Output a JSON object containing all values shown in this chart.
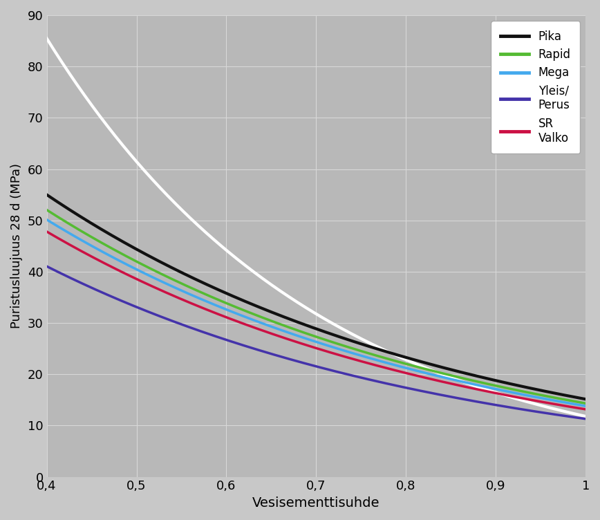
{
  "xlabel": "Vesisementtisuhde",
  "ylabel": "Puristusluujuus 28 d (MPa)",
  "xlim": [
    0.4,
    1.0
  ],
  "ylim": [
    0,
    90
  ],
  "yticks": [
    0,
    10,
    20,
    30,
    40,
    50,
    60,
    70,
    80,
    90
  ],
  "xticks": [
    0.4,
    0.5,
    0.6,
    0.7,
    0.8,
    0.9,
    1.0
  ],
  "xtick_labels": [
    "0,4",
    "0,5",
    "0,6",
    "0,7",
    "0,8",
    "0,9",
    "1"
  ],
  "background_color": "#c8c8c8",
  "plot_background_color": "#b8b8b8",
  "grid_color": "#d8d8d8",
  "series": [
    {
      "label": "white_curve",
      "color": "#ffffff",
      "linewidth": 3.0,
      "A": 320.0,
      "k": 3.3
    },
    {
      "label": "Pika",
      "color": "#111111",
      "linewidth": 3.0,
      "A": 130.0,
      "k": 2.15
    },
    {
      "label": "Rapid",
      "color": "#55bb33",
      "linewidth": 2.5,
      "A": 123.0,
      "k": 2.15
    },
    {
      "label": "Mega",
      "color": "#44aaee",
      "linewidth": 2.5,
      "A": 118.5,
      "k": 2.15
    },
    {
      "label": "SR\nValko",
      "color": "#cc1144",
      "linewidth": 2.5,
      "A": 113.0,
      "k": 2.15
    },
    {
      "label": "Yleis/\nPerus",
      "color": "#4433aa",
      "linewidth": 2.5,
      "A": 97.0,
      "k": 2.15
    }
  ],
  "legend_labels": [
    "Pika",
    "Rapid",
    "Mega",
    "Yleis/\nPerus",
    "SR\nValko"
  ],
  "legend_colors": [
    "#111111",
    "#55bb33",
    "#44aaee",
    "#4433aa",
    "#cc1144"
  ]
}
